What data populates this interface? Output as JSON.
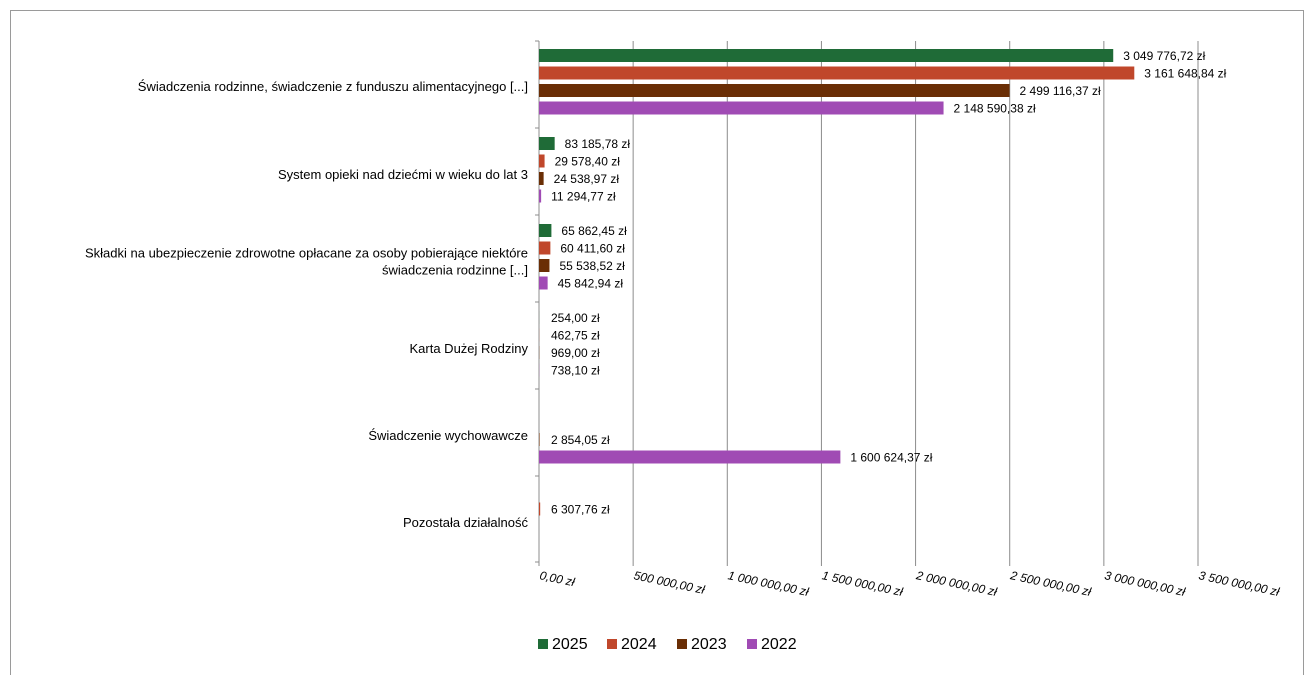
{
  "chart_data": {
    "type": "bar",
    "orientation": "horizontal",
    "title": "",
    "xlabel": "",
    "ylabel": "",
    "xlim": [
      0,
      3500000
    ],
    "x_ticks": [
      0,
      500000,
      1000000,
      1500000,
      2000000,
      2500000,
      3000000,
      3500000
    ],
    "x_tick_labels": [
      "0,00 zł",
      "500 000,00 zł",
      "1 000 000,00 zł",
      "1 500 000,00 zł",
      "2 000 000,00 zł",
      "2 500 000,00 zł",
      "3 000 000,00 zł",
      "3 500 000,00 zł"
    ],
    "grid": "vertical",
    "legend_position": "bottom",
    "categories": [
      [
        "Świadczenia rodzinne, świadczenie z funduszu alimentacyjnego [...]"
      ],
      [
        "System opieki nad dziećmi w wieku do lat 3"
      ],
      [
        "Składki na ubezpieczenie zdrowotne opłacane za osoby pobierające niektóre",
        "świadczenia rodzinne [...]"
      ],
      [
        "Karta Dużej Rodziny"
      ],
      [
        "Świadczenie wychowawcze"
      ],
      [
        "Pozostała działalność"
      ]
    ],
    "series": [
      {
        "name": "2025",
        "color": "#1f6b37",
        "values": [
          3049776.72,
          83185.78,
          65862.45,
          254.0,
          null,
          null
        ],
        "labels": [
          "3 049 776,72 zł",
          "83 185,78 zł",
          "65 862,45 zł",
          "254,00 zł",
          null,
          null
        ]
      },
      {
        "name": "2024",
        "color": "#c0472b",
        "values": [
          3161648.84,
          29578.4,
          60411.6,
          462.75,
          null,
          6307.76
        ],
        "labels": [
          "3 161 648,84 zł",
          "29 578,40 zł",
          "60 411,60 zł",
          "462,75 zł",
          null,
          "6 307,76 zł"
        ]
      },
      {
        "name": "2023",
        "color": "#6a2e05",
        "values": [
          2499116.37,
          24538.97,
          55538.52,
          969.0,
          2854.05,
          null
        ],
        "labels": [
          "2 499 116,37 zł",
          "24 538,97 zł",
          "55 538,52 zł",
          "969,00 zł",
          "2 854,05 zł",
          null
        ]
      },
      {
        "name": "2022",
        "color": "#a04bb4",
        "values": [
          2148590.38,
          11294.77,
          45842.94,
          738.1,
          1600624.37,
          null
        ],
        "labels": [
          "2 148 590,38 zł",
          "11 294,77 zł",
          "45 842,94 zł",
          "738,10 zł",
          "1 600 624,37 zł",
          null
        ]
      }
    ]
  }
}
